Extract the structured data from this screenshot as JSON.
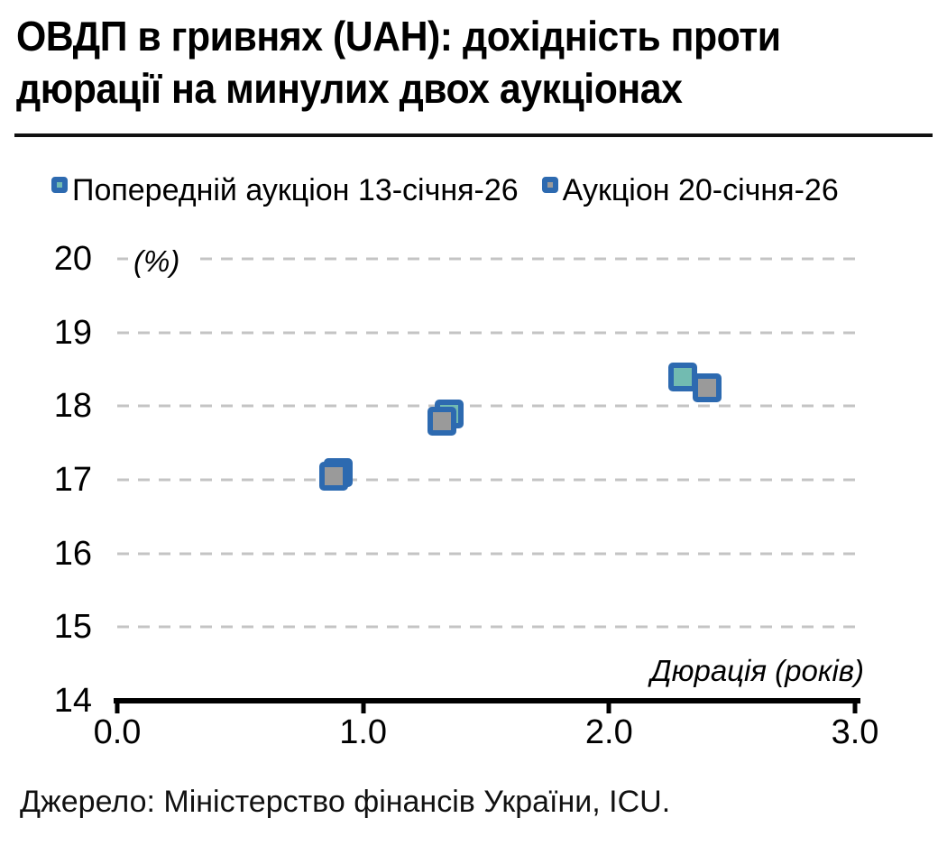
{
  "title": "ОВДП в гривнях (UAH): дохідність проти дюрації на минулих двох аукціонах",
  "source": "Джерело: Міністерство фінансів України, ICU.",
  "colors": {
    "marker_border": "#2d6ab0",
    "previous_fill": "#72bbb1",
    "current_fill": "#9a9a9a",
    "gridline": "#c4c4c4",
    "axis": "#000000"
  },
  "chart_data": {
    "type": "scatter",
    "title": "ОВДП в гривнях (UAH): дохідність проти дюрації на минулих двох аукціонах",
    "xlabel": "Дюрація (років)",
    "ylabel": "(%)",
    "xlim": [
      0,
      3
    ],
    "ylim": [
      14,
      20
    ],
    "x_ticks": [
      "0.0",
      "1.0",
      "2.0",
      "3.0"
    ],
    "y_ticks": [
      14,
      15,
      16,
      17,
      18,
      19,
      20
    ],
    "grid": "horizontal-dashed",
    "legend_position": "top-left",
    "series": [
      {
        "name": "Попередній аукціон 13-січня-26",
        "marker": "square",
        "fill": "#72bbb1",
        "border": "#2d6ab0",
        "points": [
          {
            "x": 0.9,
            "y": 17.1
          },
          {
            "x": 1.35,
            "y": 17.9
          },
          {
            "x": 2.3,
            "y": 18.4
          }
        ]
      },
      {
        "name": "Аукціон 20-січня-26",
        "marker": "square",
        "fill": "#9a9a9a",
        "border": "#2d6ab0",
        "points": [
          {
            "x": 0.88,
            "y": 17.05
          },
          {
            "x": 1.32,
            "y": 17.8
          },
          {
            "x": 2.4,
            "y": 18.25
          }
        ]
      }
    ]
  }
}
